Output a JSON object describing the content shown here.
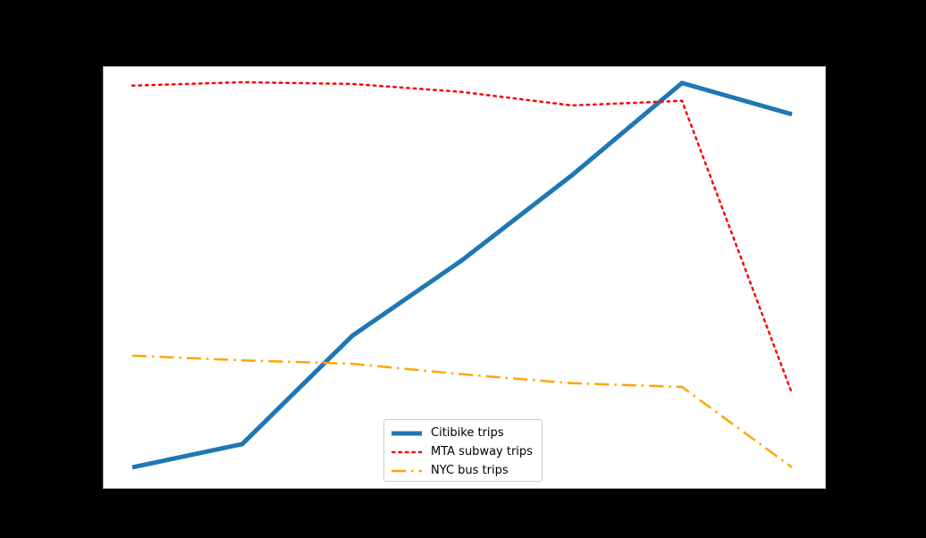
{
  "chart_data": {
    "type": "line",
    "title": "",
    "xlabel": "",
    "ylabel": "",
    "axes_text_visible": false,
    "note": "Axis ticks/labels/title rendered black on black background (not readable); values are normalized plot-height units (0=bottom, 100=top of axes).",
    "x": [
      0,
      1,
      2,
      3,
      4,
      5,
      6
    ],
    "ylim": [
      0,
      100
    ],
    "grid": false,
    "legend_position": "lower center",
    "series": [
      {
        "name": "Citibike trips",
        "color": "#1f77b4",
        "style": "solid",
        "width": 5,
        "values": [
          5.1,
          10.6,
          36.2,
          54.1,
          74.2,
          96.0,
          88.6
        ]
      },
      {
        "name": "MTA subway trips",
        "color": "#ff0000",
        "style": "dotted",
        "width": 2.5,
        "values": [
          95.4,
          96.2,
          95.8,
          93.9,
          90.7,
          91.8,
          22.6
        ]
      },
      {
        "name": "NYC bus trips",
        "color": "#ffa500",
        "style": "dashdot",
        "width": 2.5,
        "values": [
          31.5,
          30.4,
          29.6,
          27.1,
          25.0,
          24.1,
          5.1
        ]
      }
    ]
  },
  "legend": {
    "items": [
      {
        "label": "Citibike trips",
        "color": "#1f77b4",
        "style": "solid"
      },
      {
        "label": "MTA subway trips",
        "color": "#ff0000",
        "style": "dotted"
      },
      {
        "label": "NYC bus trips",
        "color": "#ffa500",
        "style": "dashdot"
      }
    ]
  },
  "figure": {
    "background": "#000000",
    "axes_background": "#ffffff"
  }
}
